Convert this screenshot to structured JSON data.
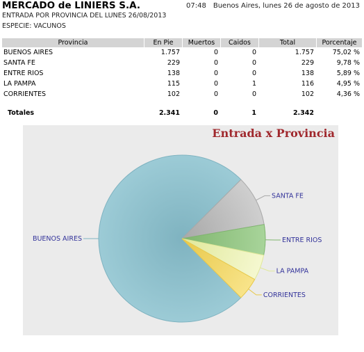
{
  "header": {
    "title": "MERCADO de LINIERS S.A.",
    "time": "07:48",
    "date": "Buenos Aires, lunes 26 de agosto de 2013",
    "subtitle": "ENTRADA POR PROVINCIA DEL LUNES 26/08/2013",
    "species": "ESPECIE: VACUNOS"
  },
  "table": {
    "columns": [
      "Provincia",
      "En Pie",
      "Muertos",
      "Caidos",
      "Total",
      "Porcentaje"
    ],
    "rows": [
      [
        "BUENOS AIRES",
        "1.757",
        "0",
        "0",
        "1.757",
        "75,02 %"
      ],
      [
        "SANTA FE",
        "229",
        "0",
        "0",
        "229",
        "9,78 %"
      ],
      [
        "ENTRE RIOS",
        "138",
        "0",
        "0",
        "138",
        "5,89 %"
      ],
      [
        "LA PAMPA",
        "115",
        "0",
        "1",
        "116",
        "4,95 %"
      ],
      [
        "CORRIENTES",
        "102",
        "0",
        "0",
        "102",
        "4,36 %"
      ]
    ],
    "totals": [
      "Totales",
      "2.341",
      "0",
      "1",
      "2.342"
    ]
  },
  "chart_data": {
    "type": "pie",
    "title": "Entrada x Provincia",
    "categories": [
      "BUENOS AIRES",
      "SANTA FE",
      "ENTRE RIOS",
      "LA PAMPA",
      "CORRIENTES"
    ],
    "values": [
      1757,
      229,
      138,
      116,
      102
    ],
    "colors": [
      "#9ccbd6",
      "#cfcfcf",
      "#a8d49a",
      "#f5f8d0",
      "#f8e48a"
    ],
    "stroke_colors": [
      "#7fb3c0",
      "#a8a8a8",
      "#7fb56e",
      "#e0e89a",
      "#e8c84a"
    ]
  }
}
